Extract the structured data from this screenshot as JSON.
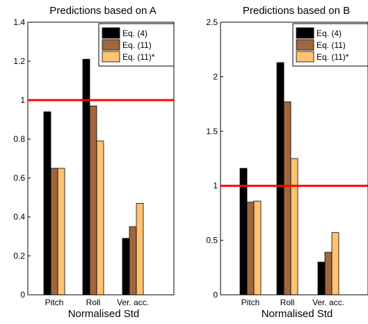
{
  "colors": {
    "series": [
      "#000000",
      "#a0673f",
      "#ffc274"
    ],
    "reference_line": "#ff0000",
    "axis": "#000000",
    "background": "#ffffff"
  },
  "chart_data": [
    {
      "type": "bar",
      "title": "Predictions based on A",
      "xlabel": "Normalised Std",
      "ylabel": "",
      "categories": [
        "Pitch",
        "Roll",
        "Ver. acc."
      ],
      "series": [
        {
          "name": "Eq. (4)",
          "values": [
            0.94,
            1.21,
            0.29
          ]
        },
        {
          "name": "Eq. (11)",
          "values": [
            0.65,
            0.97,
            0.35
          ]
        },
        {
          "name": "Eq. (11)*",
          "values": [
            0.65,
            0.79,
            0.47
          ]
        }
      ],
      "ylim": [
        0,
        1.4
      ],
      "yticks": [
        "0",
        "0.2",
        "0.4",
        "0.6",
        "0.8",
        "1",
        "1.2",
        "1.4"
      ],
      "ytick_values": [
        0,
        0.2,
        0.4,
        0.6,
        0.8,
        1,
        1.2,
        1.4
      ],
      "reference_line": 1,
      "grid": false,
      "legend_position": "top-right"
    },
    {
      "type": "bar",
      "title": "Predictions based on B",
      "xlabel": "Normalised Std",
      "ylabel": "",
      "categories": [
        "Pitch",
        "Roll",
        "Ver. acc."
      ],
      "series": [
        {
          "name": "Eq. (4)",
          "values": [
            1.16,
            2.13,
            0.3
          ]
        },
        {
          "name": "Eq. (11)",
          "values": [
            0.85,
            1.77,
            0.39
          ]
        },
        {
          "name": "Eq. (11)*",
          "values": [
            0.86,
            1.25,
            0.57
          ]
        }
      ],
      "ylim": [
        0,
        2.5
      ],
      "yticks": [
        "0",
        "0.5",
        "1",
        "1.5",
        "2",
        "2.5"
      ],
      "ytick_values": [
        0,
        0.5,
        1,
        1.5,
        2,
        2.5
      ],
      "reference_line": 1,
      "grid": false,
      "legend_position": "top-right"
    }
  ]
}
